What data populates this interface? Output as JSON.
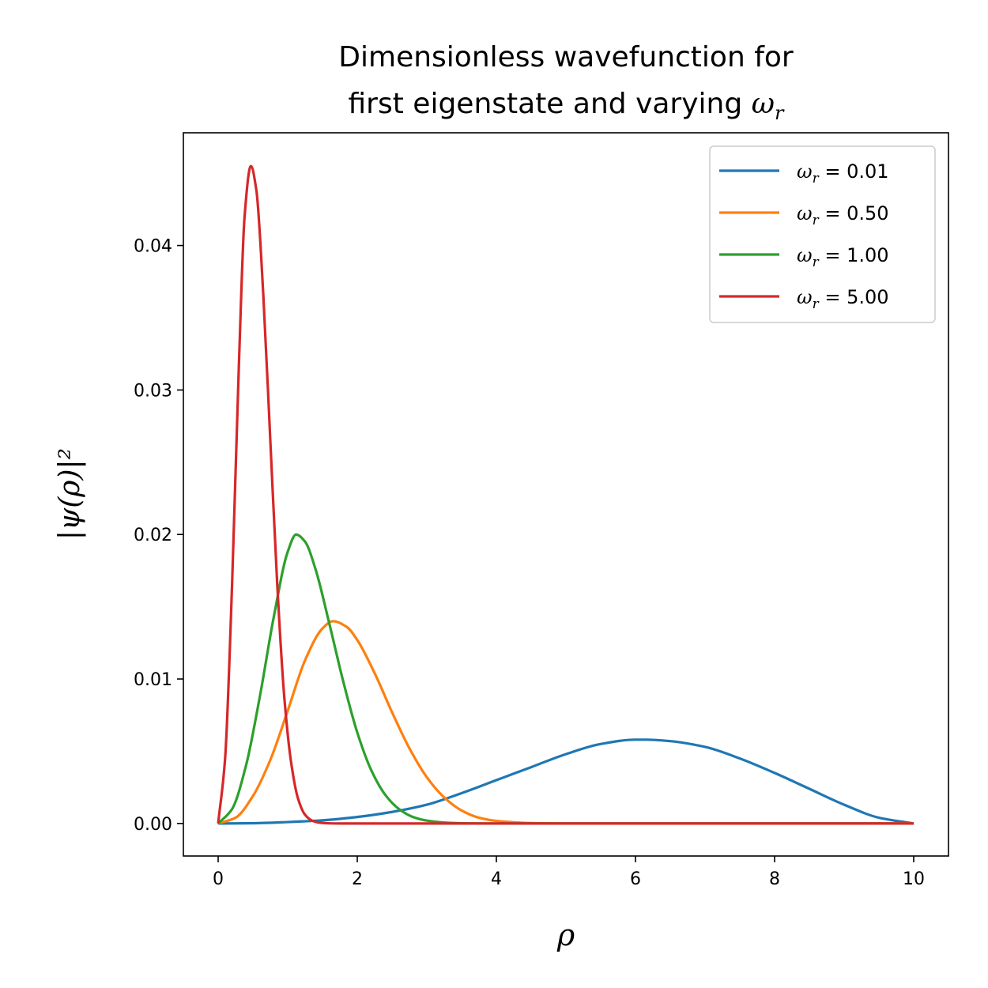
{
  "chart_data": {
    "type": "line",
    "title_line1": "Dimensionless wavefunction for",
    "title_line2_text": "first eigenstate and varying ",
    "title_line2_symbol": "ω",
    "title_line2_subscript": "r",
    "xlabel": "ρ",
    "ylabel": "|ψ(ρ)|²",
    "xlim": [
      -0.5,
      10.5
    ],
    "ylim": [
      -0.00225,
      0.0478
    ],
    "xticks": [
      0,
      2,
      4,
      6,
      8,
      10
    ],
    "xtick_labels": [
      "0",
      "2",
      "4",
      "6",
      "8",
      "10"
    ],
    "yticks": [
      0.0,
      0.01,
      0.02,
      0.03,
      0.04
    ],
    "ytick_labels": [
      "0.00",
      "0.01",
      "0.02",
      "0.03",
      "0.04"
    ],
    "grid": false,
    "legend_position": "top-right",
    "series": [
      {
        "name": "ω_r = 0.01",
        "symbol": "ω",
        "subscript": "r",
        "value_text": " = 0.01",
        "color": "#1f77b4",
        "x": [
          0,
          0.5,
          1,
          1.5,
          2,
          2.5,
          3,
          3.5,
          4,
          4.5,
          5,
          5.5,
          6,
          6.15,
          6.5,
          7,
          7.5,
          8,
          8.5,
          9,
          9.5,
          10
        ],
        "y": [
          0,
          2e-05,
          0.0001,
          0.00022,
          0.00045,
          0.0008,
          0.0013,
          0.0021,
          0.003,
          0.0039,
          0.0048,
          0.0055,
          0.0058,
          0.0058,
          0.0057,
          0.0053,
          0.0045,
          0.0035,
          0.0024,
          0.0013,
          0.0004,
          0.0
        ]
      },
      {
        "name": "ω_r = 0.50",
        "symbol": "ω",
        "subscript": "r",
        "value_text": " = 0.50",
        "color": "#ff7f0e",
        "x": [
          0,
          0.25,
          0.5,
          0.75,
          1.0,
          1.25,
          1.5,
          1.65,
          1.85,
          2.0,
          2.25,
          2.5,
          2.75,
          3.0,
          3.25,
          3.5,
          3.75,
          4.0,
          4.5,
          5.0,
          6.0,
          8.0,
          10.0
        ],
        "y": [
          0,
          0.0004,
          0.0019,
          0.0044,
          0.0078,
          0.0113,
          0.0135,
          0.014,
          0.0136,
          0.0127,
          0.0104,
          0.0077,
          0.0052,
          0.0032,
          0.0018,
          0.0009,
          0.0004,
          0.00018,
          3e-05,
          0,
          0,
          0,
          0
        ]
      },
      {
        "name": "ω_r = 1.00",
        "symbol": "ω",
        "subscript": "r",
        "value_text": " = 1.00",
        "color": "#2ca02c",
        "x": [
          0,
          0.2,
          0.4,
          0.6,
          0.8,
          1.0,
          1.12,
          1.25,
          1.4,
          1.6,
          1.8,
          2.0,
          2.2,
          2.4,
          2.6,
          2.8,
          3.0,
          3.3,
          3.6,
          4.0,
          5.0,
          6.0,
          8.0,
          10.0
        ],
        "y": [
          0,
          0.001,
          0.004,
          0.0088,
          0.0143,
          0.0188,
          0.02,
          0.0195,
          0.0176,
          0.0138,
          0.0098,
          0.0063,
          0.0037,
          0.002,
          0.001,
          0.00045,
          0.0002,
          5e-05,
          1e-05,
          0,
          0,
          0,
          0,
          0
        ]
      },
      {
        "name": "ω_r = 5.00",
        "symbol": "ω",
        "subscript": "r",
        "value_text": " = 5.00",
        "color": "#d62728",
        "x": [
          0,
          0.1,
          0.2,
          0.3,
          0.38,
          0.47,
          0.55,
          0.65,
          0.75,
          0.85,
          0.95,
          1.05,
          1.15,
          1.25,
          1.35,
          1.45,
          1.6,
          1.8,
          2.0,
          3.0,
          5.0,
          10.0
        ],
        "y": [
          0,
          0.0045,
          0.0165,
          0.032,
          0.042,
          0.0455,
          0.0438,
          0.0365,
          0.0265,
          0.0165,
          0.0088,
          0.0042,
          0.0017,
          0.0006,
          0.0002,
          6e-05,
          1e-05,
          0,
          0,
          0,
          0,
          0
        ]
      }
    ]
  }
}
